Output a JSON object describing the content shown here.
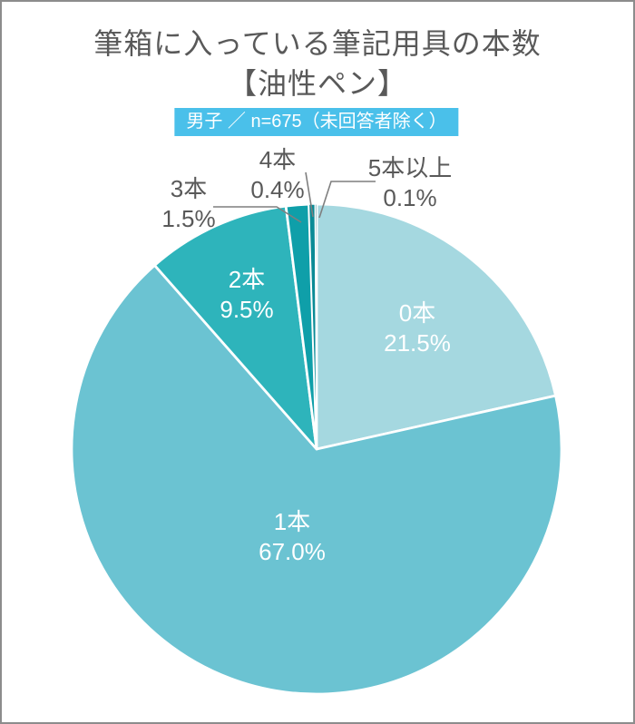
{
  "page": {
    "title_line1": "筆箱に入っている筆記用具の本数",
    "title_line2": "【油性ペン】",
    "badge": "男子 ／ n=675（未回答者除く）"
  },
  "style": {
    "badge_bg": "#4AC0EA",
    "badge_text": "#FFFFFF",
    "title_color": "#595959",
    "inside_label_color": "#FFFFFF",
    "outside_label_color": "#595959",
    "leader_line_color": "#7F7F7F",
    "slice_border_color": "#FFFFFF",
    "canvas_border_color": "#8C8C8C"
  },
  "chart_data": {
    "type": "pie",
    "title": "筆箱に入っている筆記用具の本数【油性ペン】",
    "group": "男子",
    "n": 675,
    "n_note": "未回答者除く",
    "unit": "%",
    "start_angle_deg": 0,
    "direction": "clockwise",
    "legend": "none",
    "categories": [
      "0本",
      "1本",
      "2本",
      "3本",
      "4本",
      "5本以上"
    ],
    "values": [
      21.5,
      67.0,
      9.5,
      1.5,
      0.4,
      0.1
    ],
    "slices": [
      {
        "label": "0本",
        "value": 21.5,
        "display": "21.5%",
        "color": "#A5D8E0",
        "label_placement": "inside"
      },
      {
        "label": "1本",
        "value": 67.0,
        "display": "67.0%",
        "color": "#6BC3D2",
        "label_placement": "inside"
      },
      {
        "label": "2本",
        "value": 9.5,
        "display": "9.5%",
        "color": "#2EB4BB",
        "label_placement": "inside"
      },
      {
        "label": "3本",
        "value": 1.5,
        "display": "1.5%",
        "color": "#0F9FA9",
        "label_placement": "outside"
      },
      {
        "label": "4本",
        "value": 0.4,
        "display": "0.4%",
        "color": "#0A8B96",
        "label_placement": "outside"
      },
      {
        "label": "5本以上",
        "value": 0.1,
        "display": "0.1%",
        "color": "#0D6F7C",
        "label_placement": "outside"
      }
    ]
  }
}
